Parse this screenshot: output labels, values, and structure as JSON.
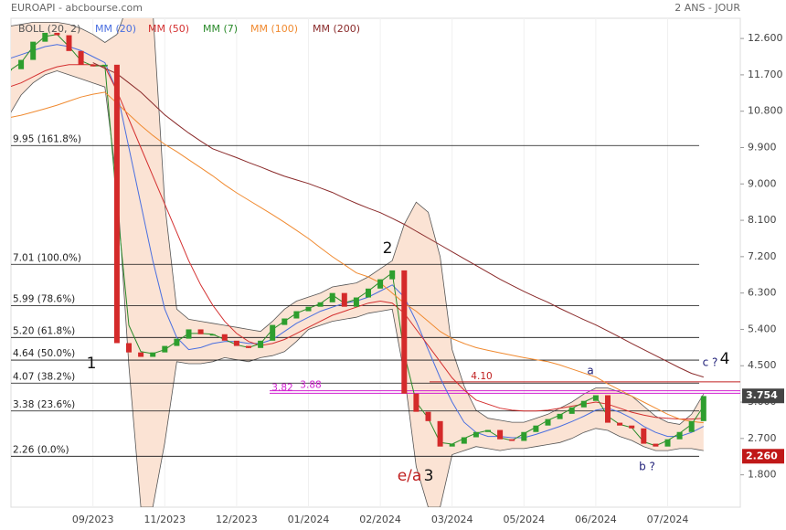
{
  "chart_data": {
    "type": "candlestick",
    "title": "EUROAPI - abcbourse.com",
    "subtitle": "2 ANS - JOUR",
    "categories": [
      null,
      null,
      null,
      null,
      null,
      null,
      null,
      "09/2023",
      null,
      null,
      null,
      null,
      null,
      "11/2023",
      null,
      null,
      null,
      null,
      null,
      "12/2023",
      null,
      null,
      null,
      null,
      null,
      "01/2024",
      null,
      null,
      null,
      null,
      null,
      "02/2024",
      null,
      null,
      null,
      null,
      null,
      "03/2024",
      null,
      null,
      null,
      null,
      null,
      "05/2024",
      null,
      null,
      null,
      null,
      null,
      "06/2024",
      null,
      null,
      null,
      null,
      null,
      "07/2024",
      null,
      null,
      null
    ],
    "price": {
      "up_color": "#2e9e2e",
      "down_color": "#d42a2a",
      "values": [
        11.84,
        12.07,
        12.52,
        12.74,
        12.68,
        12.29,
        11.95,
        11.91,
        11.95,
        5.06,
        4.83,
        4.72,
        4.83,
        4.99,
        5.17,
        5.4,
        5.28,
        5.28,
        5.12,
        4.99,
        4.94,
        5.12,
        5.51,
        5.67,
        5.85,
        5.96,
        6.07,
        6.3,
        5.96,
        6.19,
        6.41,
        6.64,
        6.86,
        3.81,
        3.36,
        3.13,
        2.5,
        2.57,
        2.73,
        2.86,
        2.91,
        2.68,
        2.64,
        2.86,
        3.02,
        3.18,
        3.31,
        3.47,
        3.63,
        3.77,
        3.09,
        3.02,
        2.95,
        2.57,
        2.5,
        2.68,
        2.86,
        3.13,
        3.75
      ]
    },
    "series": [
      {
        "name": "BOLL (20, 2)",
        "color": "#555555",
        "fill": "#fbe3d4",
        "values": [
          12.9,
          12.95,
          13.0,
          13.0,
          13.0,
          12.95,
          12.85,
          12.7,
          12.5,
          12.7,
          13.5,
          13.6,
          13.3,
          8.5,
          5.9,
          5.65,
          5.6,
          5.55,
          5.5,
          5.45,
          5.4,
          5.35,
          5.6,
          5.9,
          6.1,
          6.2,
          6.3,
          6.45,
          6.5,
          6.55,
          6.7,
          6.9,
          7.1,
          8.0,
          8.55,
          8.3,
          7.2,
          4.9,
          4.0,
          3.4,
          3.2,
          3.15,
          3.1,
          3.1,
          3.2,
          3.3,
          3.45,
          3.6,
          3.8,
          3.95,
          3.95,
          3.85,
          3.75,
          3.5,
          3.25,
          3.1,
          3.05,
          3.3,
          3.8
        ],
        "lower": [
          10.7,
          11.2,
          11.5,
          11.7,
          11.8,
          11.7,
          11.6,
          11.5,
          11.4,
          9.0,
          4.5,
          1.0,
          1.0,
          2.6,
          4.6,
          4.55,
          4.55,
          4.6,
          4.7,
          4.65,
          4.6,
          4.7,
          4.75,
          4.85,
          5.1,
          5.4,
          5.5,
          5.6,
          5.65,
          5.7,
          5.8,
          5.85,
          5.9,
          4.3,
          2.0,
          1.0,
          1.0,
          2.3,
          2.4,
          2.5,
          2.45,
          2.4,
          2.45,
          2.45,
          2.5,
          2.55,
          2.6,
          2.7,
          2.85,
          2.95,
          2.9,
          2.75,
          2.65,
          2.5,
          2.4,
          2.4,
          2.45,
          2.45,
          2.4
        ]
      },
      {
        "name": "MM (20)",
        "color": "#4a6fe0",
        "values": [
          12.1,
          12.2,
          12.3,
          12.4,
          12.45,
          12.4,
          12.3,
          12.15,
          12.0,
          11.3,
          9.9,
          8.5,
          7.1,
          5.9,
          5.2,
          4.9,
          4.95,
          5.05,
          5.1,
          5.1,
          5.05,
          5.05,
          5.15,
          5.35,
          5.55,
          5.7,
          5.85,
          5.95,
          6.05,
          6.1,
          6.2,
          6.35,
          6.5,
          6.2,
          5.6,
          4.9,
          4.2,
          3.6,
          3.1,
          2.85,
          2.75,
          2.75,
          2.72,
          2.72,
          2.8,
          2.9,
          3.0,
          3.12,
          3.25,
          3.4,
          3.45,
          3.35,
          3.2,
          3.0,
          2.85,
          2.75,
          2.75,
          2.85,
          3.0
        ]
      },
      {
        "name": "MM (50)",
        "color": "#d43030",
        "values": [
          11.4,
          11.5,
          11.65,
          11.8,
          11.9,
          11.95,
          11.95,
          11.95,
          11.9,
          11.3,
          10.6,
          9.9,
          9.2,
          8.5,
          7.8,
          7.1,
          6.5,
          6.0,
          5.6,
          5.3,
          5.1,
          5.0,
          5.05,
          5.15,
          5.3,
          5.45,
          5.6,
          5.75,
          5.85,
          5.95,
          6.05,
          6.1,
          6.05,
          5.8,
          5.4,
          5.0,
          4.6,
          4.2,
          3.9,
          3.65,
          3.55,
          3.45,
          3.4,
          3.38,
          3.38,
          3.4,
          3.45,
          3.5,
          3.55,
          3.6,
          3.55,
          3.45,
          3.35,
          3.28,
          3.22,
          3.2,
          3.18,
          3.18,
          3.2
        ]
      },
      {
        "name": "MM (7)",
        "color": "#2a8a2a",
        "values": [
          11.8,
          12.0,
          12.4,
          12.65,
          12.7,
          12.4,
          12.05,
          11.92,
          11.93,
          8.5,
          5.5,
          4.85,
          4.8,
          4.9,
          5.1,
          5.3,
          5.3,
          5.28,
          5.15,
          5.02,
          4.95,
          5.05,
          5.4,
          5.6,
          5.8,
          5.92,
          6.04,
          6.25,
          6.05,
          6.15,
          6.35,
          6.58,
          6.8,
          4.8,
          3.6,
          3.2,
          2.6,
          2.56,
          2.7,
          2.83,
          2.9,
          2.72,
          2.65,
          2.82,
          2.98,
          3.15,
          3.28,
          3.44,
          3.6,
          3.74,
          3.25,
          3.05,
          2.97,
          2.62,
          2.52,
          2.65,
          2.83,
          3.05,
          3.5
        ]
      },
      {
        "name": "MM (100)",
        "color": "#f08a30",
        "values": [
          10.64,
          10.7,
          10.78,
          10.86,
          10.95,
          11.05,
          11.15,
          11.22,
          11.27,
          11.0,
          10.72,
          10.45,
          10.2,
          9.98,
          9.8,
          9.6,
          9.4,
          9.2,
          8.98,
          8.78,
          8.6,
          8.42,
          8.24,
          8.05,
          7.85,
          7.65,
          7.42,
          7.2,
          7.0,
          6.8,
          6.7,
          6.55,
          6.3,
          6.05,
          5.85,
          5.6,
          5.35,
          5.17,
          5.05,
          4.95,
          4.88,
          4.82,
          4.76,
          4.7,
          4.65,
          4.6,
          4.52,
          4.42,
          4.32,
          4.22,
          4.05,
          3.9,
          3.75,
          3.6,
          3.45,
          3.3,
          3.18,
          3.12,
          3.09
        ]
      },
      {
        "name": "MM (200)",
        "color": "#8a2a2a",
        "values": [
          null,
          null,
          null,
          null,
          null,
          null,
          null,
          12.0,
          11.86,
          11.73,
          11.5,
          11.27,
          10.99,
          10.71,
          10.48,
          10.26,
          10.06,
          9.87,
          9.76,
          9.65,
          9.53,
          9.42,
          9.3,
          9.19,
          9.1,
          9.01,
          8.9,
          8.79,
          8.65,
          8.52,
          8.4,
          8.29,
          8.15,
          8.0,
          7.83,
          7.66,
          7.49,
          7.32,
          7.15,
          6.98,
          6.81,
          6.64,
          6.49,
          6.34,
          6.2,
          6.07,
          5.92,
          5.78,
          5.64,
          5.51,
          5.36,
          5.21,
          5.05,
          4.9,
          4.75,
          4.6,
          4.45,
          4.31,
          4.22
        ]
      }
    ],
    "ylim": [
      1.0,
      13.1
    ],
    "yticks": [
      {
        "value": 1.8,
        "label": "1.800"
      },
      {
        "value": 2.7,
        "label": "2.700"
      },
      {
        "value": 3.6,
        "label": "3.600"
      },
      {
        "value": 4.5,
        "label": "4.500"
      },
      {
        "value": 5.4,
        "label": "5.400"
      },
      {
        "value": 6.3,
        "label": "6.300"
      },
      {
        "value": 7.2,
        "label": "7.200"
      },
      {
        "value": 8.1,
        "label": "8.100"
      },
      {
        "value": 9.0,
        "label": "9.000"
      },
      {
        "value": 9.9,
        "label": "9.900"
      },
      {
        "value": 10.8,
        "label": "10.800"
      },
      {
        "value": 11.7,
        "label": "11.700"
      },
      {
        "value": 12.6,
        "label": "12.600"
      }
    ],
    "levels": [
      {
        "value": 9.95,
        "label": "9.95  (161.8%)"
      },
      {
        "value": 7.01,
        "label": "7.01  (100.0%)"
      },
      {
        "value": 5.99,
        "label": "5.99  (78.6%)"
      },
      {
        "value": 5.2,
        "label": "5.20  (61.8%)"
      },
      {
        "value": 4.64,
        "label": "4.64  (50.0%)"
      },
      {
        "value": 4.07,
        "label": "4.07  (38.2%)"
      },
      {
        "value": 3.38,
        "label": "3.38  (23.6%)"
      },
      {
        "value": 2.26,
        "label": "2.26  (0.0%)"
      }
    ],
    "markers": [
      {
        "value": 4.1,
        "label": "4.10",
        "color": "#c02020"
      },
      {
        "value": 3.82,
        "label": "3.82",
        "color": "#d020d0"
      },
      {
        "value": 3.88,
        "label": "3.88",
        "color": "#d020d0"
      }
    ],
    "annotations": [
      {
        "text": "1",
        "color": "#111"
      },
      {
        "text": "2",
        "color": "#111"
      },
      {
        "text": "e/a",
        "color": "#c02020"
      },
      {
        "text": "3",
        "color": "#111"
      },
      {
        "text": "a",
        "color": "#22227a"
      },
      {
        "text": "b ?",
        "color": "#22227a"
      },
      {
        "text": "c ?",
        "color": "#22227a"
      },
      {
        "text": "4",
        "color": "#111"
      }
    ],
    "tags": [
      {
        "value": 3.754,
        "label": "3.754",
        "color": "#444444"
      },
      {
        "value": 2.26,
        "label": "2.260",
        "color": "#c01818"
      }
    ]
  }
}
